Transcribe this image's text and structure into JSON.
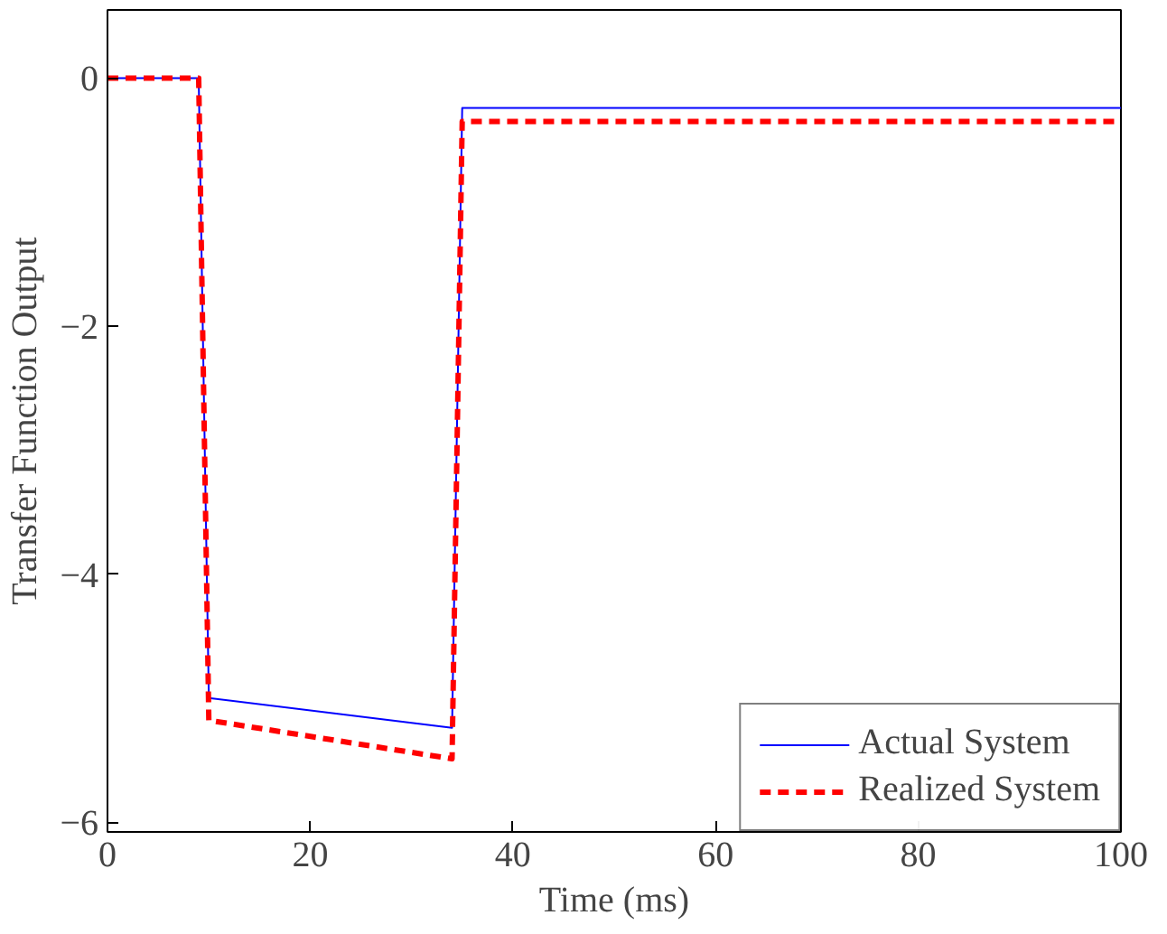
{
  "chart_data": {
    "type": "line",
    "xlabel": "Time (ms)",
    "ylabel": "Transfer Function Output",
    "x": [
      0,
      9,
      10,
      34,
      35,
      100
    ],
    "series": [
      {
        "name": "Actual System",
        "color": "#0000ff",
        "line_style": "solid",
        "values": [
          0,
          0,
          -5.0,
          -5.24,
          -0.24,
          -0.24
        ]
      },
      {
        "name": "Realized System",
        "color": "#ff0000",
        "line_style": "dashed",
        "values": [
          0,
          0,
          -5.18,
          -5.49,
          -0.35,
          -0.35
        ]
      }
    ],
    "xlim": [
      0,
      100
    ],
    "ylim": [
      -6.08,
      0.55
    ],
    "xticks": [
      0,
      20,
      40,
      60,
      80,
      100
    ],
    "yticks": [
      {
        "value": -6,
        "label": "−6"
      },
      {
        "value": -4,
        "label": "−4"
      },
      {
        "value": -2,
        "label": "−2"
      },
      0
    ],
    "grid": false,
    "legend": "bottom right",
    "marker": "none"
  }
}
